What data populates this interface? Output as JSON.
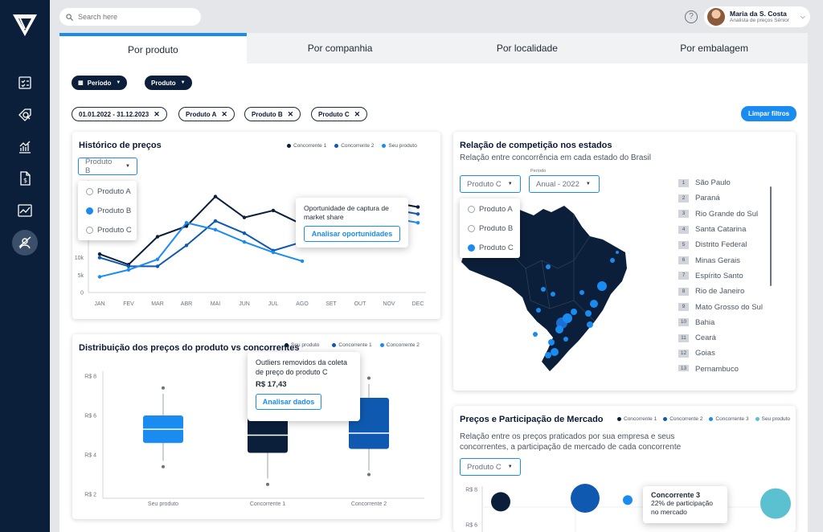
{
  "search": {
    "placeholder": "Search here"
  },
  "user": {
    "name": "Maria da S. Costa",
    "role": "Analista de preços Sênior",
    "help": "?"
  },
  "tabs": [
    {
      "label": "Por produto"
    },
    {
      "label": "Por companhia"
    },
    {
      "label": "Por localidade"
    },
    {
      "label": "Por embalagem"
    }
  ],
  "filters": {
    "periodo": "Período",
    "produto": "Produto"
  },
  "chips": [
    {
      "label": "01.01.2022 - 31.12.2023"
    },
    {
      "label": "Produto A"
    },
    {
      "label": "Produto B"
    },
    {
      "label": "Produto C"
    }
  ],
  "clear_filters": "Limpar filtros",
  "colors": {
    "navy": "#0b1f3a",
    "blue": "#1a8bf0",
    "mid": "#0f5ab0",
    "light": "#5bc0cf"
  },
  "history": {
    "title": "Histórico de preços",
    "legend": [
      "Concorrente 1",
      "Concorrente 2",
      "Seu produto"
    ],
    "select": "Produto B",
    "options": [
      {
        "label": "Produto A",
        "selected": false
      },
      {
        "label": "Produto B",
        "selected": true
      },
      {
        "label": "Produto C",
        "selected": false
      }
    ],
    "tip_text": "Oportunidade de captura de market share",
    "tip_button": "Analisar oportunidades"
  },
  "distribution": {
    "title": "Distribuição dos preços do produto vs concorrentes",
    "legend": [
      "Seu produto",
      "Concorrente 1",
      "Concorrente 2"
    ],
    "tip_text": "Outliers removidos da coleta de preço do produto C",
    "tip_value": "R$ 17,43",
    "tip_button": "Analisar dados"
  },
  "competition": {
    "title": "Relação de competição nos estados",
    "subtitle": "Relação entre concorrência em cada estado do Brasil",
    "select": "Produto C",
    "period_label": "Período",
    "period": "Anual - 2022",
    "options": [
      {
        "label": "Produto A",
        "selected": false
      },
      {
        "label": "Produto B",
        "selected": false
      },
      {
        "label": "Produto C",
        "selected": true
      }
    ],
    "states": [
      "São Paulo",
      "Paraná",
      "Rio Grande do Sul",
      "Santa Catarina",
      "Distrito Federal",
      "Minas Gerais",
      "Espírito Santo",
      "Rio de Janeiro",
      "Mato Grosso do Sul",
      "Bahia",
      "Ceará",
      "Goias",
      "Pernambuco"
    ]
  },
  "market": {
    "title": "Preços e Participação de Mercado",
    "subtitle": "Relação entre os preços praticados por sua empresa e seus concorrentes, a participação de mercado de cada concorrente",
    "legend": [
      "Concorrente 1",
      "Concorrente 2",
      "Concorrente 3",
      "Seu produto"
    ],
    "select": "Produto C",
    "tip_title": "Concorrente 3",
    "tip_text": "22% de participação no mercado"
  },
  "chart_data": [
    {
      "type": "line",
      "title": "Histórico de preços",
      "categories": [
        "JAN",
        "FEV",
        "MAR",
        "ABR",
        "MAI",
        "JUN",
        "JUL",
        "AGO",
        "SET",
        "OUT",
        "NOV",
        "DEC"
      ],
      "y_ticks": [
        "0",
        "5k",
        "10k"
      ],
      "ylim": [
        0,
        35000
      ],
      "series": [
        {
          "name": "Concorrente 1",
          "color": "#0b1f3a",
          "values": [
            11000,
            8000,
            16000,
            19000,
            27500,
            21500,
            23500,
            19500,
            null,
            25000,
            26000,
            24500
          ]
        },
        {
          "name": "Concorrente 2",
          "color": "#0f5ab0",
          "values": [
            10000,
            7500,
            7500,
            13500,
            20500,
            17000,
            12000,
            14500,
            null,
            22000,
            24000,
            22500
          ]
        },
        {
          "name": "Seu produto",
          "color": "#1a8bf0",
          "values": [
            4500,
            6500,
            9500,
            20000,
            18000,
            14500,
            11500,
            9000,
            null,
            20500,
            21500,
            20000
          ]
        }
      ]
    },
    {
      "type": "box",
      "title": "Distribuição dos preços do produto vs concorrentes",
      "categories": [
        "Seu produto",
        "Concorrente 1",
        "Concorrente 2"
      ],
      "y_ticks": [
        "R$ 2",
        "R$ 4",
        "R$ 6",
        "R$ 8"
      ],
      "ylim": [
        2,
        8
      ],
      "boxes": [
        {
          "name": "Seu produto",
          "color": "#1a8bf0",
          "min": 3.7,
          "q1": 4.6,
          "median": 5.3,
          "q3": 6.0,
          "max": 7.1,
          "outliers": [
            3.4,
            7.4
          ]
        },
        {
          "name": "Concorrente 1",
          "color": "#0b1f3a",
          "min": 2.8,
          "q1": 4.1,
          "median": 5.0,
          "q3": 6.3,
          "max": 7.0,
          "outliers": [
            2.5
          ]
        },
        {
          "name": "Concorrente 2",
          "color": "#0f5ab0",
          "min": 3.2,
          "q1": 4.3,
          "median": 5.1,
          "q3": 6.9,
          "max": 7.6,
          "outliers": [
            3.0,
            7.9
          ]
        }
      ]
    },
    {
      "type": "scatter",
      "title": "Preços e Participação de Mercado",
      "y_ticks": [
        "R$ 6",
        "R$ 8"
      ],
      "points": [
        {
          "name": "Concorrente 1",
          "color": "#0b1f3a",
          "x": 1,
          "y": 7.3,
          "size": 12
        },
        {
          "name": "Concorrente 2",
          "color": "#0f5ab0",
          "x": 2,
          "y": 7.5,
          "size": 18
        },
        {
          "name": "Concorrente 3",
          "color": "#1a8bf0",
          "x": 3,
          "y": 7.4,
          "size": 6
        },
        {
          "name": "Seu produto",
          "color": "#5bc0cf",
          "x": 5,
          "y": 7.2,
          "size": 19
        }
      ]
    }
  ]
}
